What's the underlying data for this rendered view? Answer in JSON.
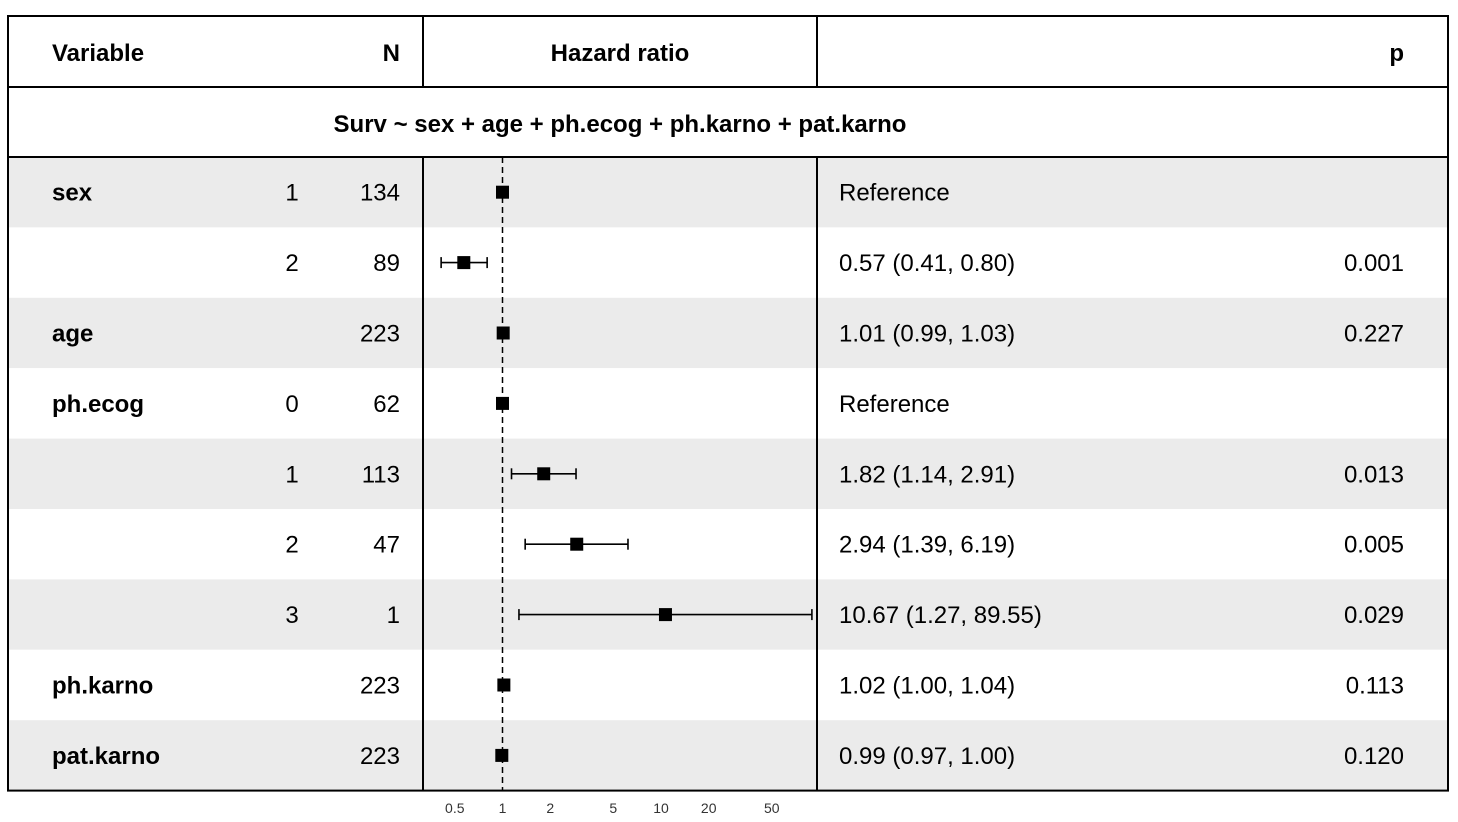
{
  "chart_data": {
    "type": "forest",
    "header": {
      "variable": "Variable",
      "n": "N",
      "hazard_ratio": "Hazard ratio",
      "p": "p"
    },
    "formula": "Surv ~ sex + age + ph.ecog + ph.karno + pat.karno",
    "x_scale": "log",
    "xlim": [
      0.3,
      110
    ],
    "reference_line": 1,
    "x_ticks": [
      {
        "value": 0.5,
        "label": "0.5"
      },
      {
        "value": 1,
        "label": "1"
      },
      {
        "value": 2,
        "label": "2"
      },
      {
        "value": 5,
        "label": "5"
      },
      {
        "value": 10,
        "label": "10"
      },
      {
        "value": 20,
        "label": "20"
      },
      {
        "value": 50,
        "label": "50"
      }
    ],
    "rows": [
      {
        "variable": "sex",
        "level": "1",
        "n": "134",
        "hr": 1.0,
        "lower": null,
        "upper": null,
        "estimate": "Reference",
        "p": ""
      },
      {
        "variable": "",
        "level": "2",
        "n": "89",
        "hr": 0.57,
        "lower": 0.41,
        "upper": 0.8,
        "estimate": "0.57 (0.41, 0.80)",
        "p": "0.001"
      },
      {
        "variable": "age",
        "level": "",
        "n": "223",
        "hr": 1.01,
        "lower": 0.99,
        "upper": 1.03,
        "estimate": "1.01 (0.99, 1.03)",
        "p": "0.227"
      },
      {
        "variable": "ph.ecog",
        "level": "0",
        "n": "62",
        "hr": 1.0,
        "lower": null,
        "upper": null,
        "estimate": "Reference",
        "p": ""
      },
      {
        "variable": "",
        "level": "1",
        "n": "113",
        "hr": 1.82,
        "lower": 1.14,
        "upper": 2.91,
        "estimate": "1.82 (1.14, 2.91)",
        "p": "0.013"
      },
      {
        "variable": "",
        "level": "2",
        "n": "47",
        "hr": 2.94,
        "lower": 1.39,
        "upper": 6.19,
        "estimate": "2.94 (1.39, 6.19)",
        "p": "0.005"
      },
      {
        "variable": "",
        "level": "3",
        "n": "1",
        "hr": 10.67,
        "lower": 1.27,
        "upper": 89.55,
        "estimate": "10.67 (1.27, 89.55)",
        "p": "0.029"
      },
      {
        "variable": "ph.karno",
        "level": "",
        "n": "223",
        "hr": 1.02,
        "lower": 1.0,
        "upper": 1.04,
        "estimate": "1.02 (1.00, 1.04)",
        "p": "0.113"
      },
      {
        "variable": "pat.karno",
        "level": "",
        "n": "223",
        "hr": 0.99,
        "lower": 0.97,
        "upper": 1.0,
        "estimate": "0.99 (0.97, 1.00)",
        "p": "0.120"
      }
    ],
    "colors": {
      "stripe": "#ebebeb",
      "background": "#ffffff",
      "marker": "#000000"
    }
  }
}
